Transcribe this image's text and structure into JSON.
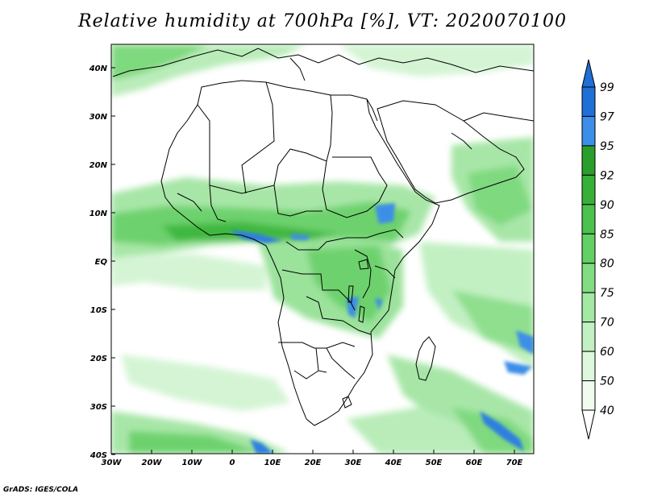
{
  "title": "Relative humidity at 700hPa [%], VT: 2020070100",
  "credit": "GrADS: IGES/COLA",
  "map": {
    "lon_labels": [
      "30W",
      "20W",
      "10W",
      "0",
      "10E",
      "20E",
      "30E",
      "40E",
      "50E",
      "60E",
      "70E"
    ],
    "lat_labels": [
      "40N",
      "30N",
      "20N",
      "10N",
      "EQ",
      "10S",
      "20S",
      "30S",
      "40S"
    ],
    "lon_range": [
      -30,
      75
    ],
    "lat_range": [
      -40,
      44
    ]
  },
  "colorbar": {
    "levels": [
      "99",
      "97",
      "95",
      "92",
      "90",
      "85",
      "80",
      "75",
      "70",
      "60",
      "50",
      "40"
    ],
    "colors": [
      "#1f6fd6",
      "#3d8ee8",
      "#2a9e2a",
      "#37b037",
      "#4bc24b",
      "#63d063",
      "#82dc82",
      "#a3e8a3",
      "#c3f0c3",
      "#ddf8dd",
      "#f0fcf0"
    ]
  }
}
